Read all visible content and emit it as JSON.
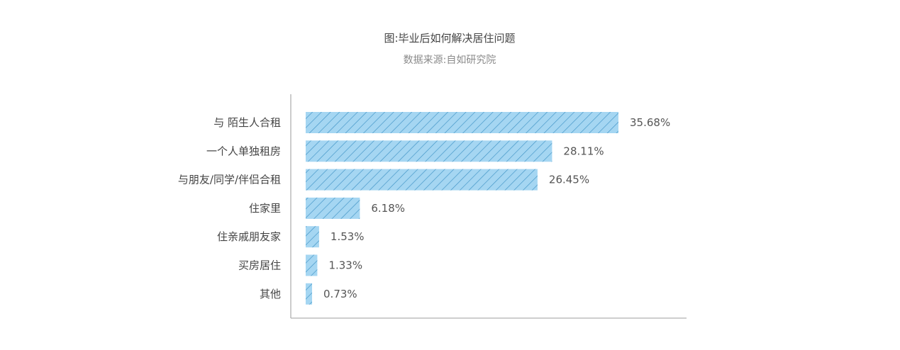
{
  "chart_data": {
    "type": "bar",
    "orientation": "horizontal",
    "title": "图:毕业后如何解决居住问题",
    "subtitle": "数据来源:自如研究院",
    "categories": [
      "与 陌生人合租",
      "一个人单独租房",
      "与朋友/同学/伴侣合租",
      "住家里",
      "住亲戚朋友家",
      "买房居住",
      "其他"
    ],
    "values": [
      35.68,
      28.11,
      26.45,
      6.18,
      1.53,
      1.33,
      0.73
    ],
    "value_labels": [
      "35.68%",
      "28.11%",
      "26.45%",
      "6.18%",
      "1.53%",
      "1.33%",
      "0.73%"
    ],
    "xlim": [
      0,
      40
    ],
    "grid": false,
    "legend": "none",
    "colors": {
      "bar_fill": "#a5d6f2",
      "bar_hatch": "#3f93c6",
      "axis": "#b0b0b0"
    }
  }
}
